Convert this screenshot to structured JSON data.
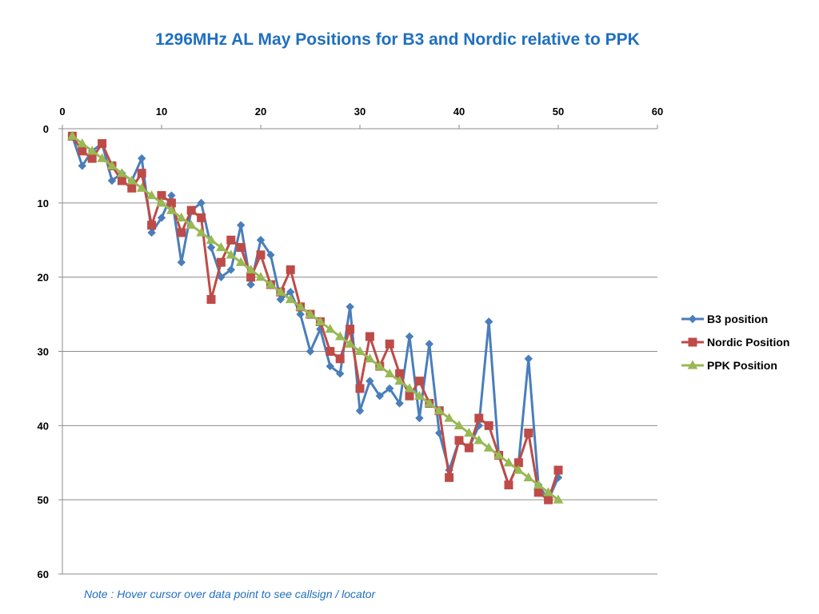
{
  "chart_data": {
    "type": "line",
    "title": "1296MHz AL May Positions for B3 and Nordic relative to PPK",
    "xlabel": "",
    "ylabel": "",
    "xlim": [
      0,
      60
    ],
    "ylim": [
      0,
      60
    ],
    "x_axis_position": "top",
    "y_axis_inverted": true,
    "x_ticks": [
      "0",
      "10",
      "20",
      "30",
      "40",
      "50",
      "60"
    ],
    "y_ticks": [
      "0",
      "10",
      "20",
      "30",
      "40",
      "50",
      "60"
    ],
    "grid": "horizontal",
    "legend_position": "right",
    "x": [
      1,
      2,
      3,
      4,
      5,
      6,
      7,
      8,
      9,
      10,
      11,
      12,
      13,
      14,
      15,
      16,
      17,
      18,
      19,
      20,
      21,
      22,
      23,
      24,
      25,
      26,
      27,
      28,
      29,
      30,
      31,
      32,
      33,
      34,
      35,
      36,
      37,
      38,
      39,
      40,
      41,
      42,
      43,
      44,
      45,
      46,
      47,
      48,
      49,
      50
    ],
    "series": [
      {
        "name": "B3 position",
        "color": "#4a7ebb",
        "marker": "diamond",
        "values": [
          1,
          5,
          3,
          2,
          7,
          6,
          7,
          4,
          14,
          12,
          9,
          18,
          11,
          10,
          16,
          20,
          19,
          13,
          21,
          15,
          17,
          23,
          22,
          25,
          30,
          27,
          32,
          33,
          24,
          38,
          34,
          36,
          35,
          37,
          28,
          39,
          29,
          41,
          46,
          42,
          43,
          40,
          26,
          44,
          48,
          45,
          31,
          48,
          50,
          47
        ]
      },
      {
        "name": "Nordic Position",
        "color": "#be4b48",
        "marker": "square",
        "values": [
          1,
          3,
          4,
          2,
          5,
          7,
          8,
          6,
          13,
          9,
          10,
          14,
          11,
          12,
          23,
          18,
          15,
          16,
          20,
          17,
          21,
          22,
          19,
          24,
          25,
          26,
          30,
          31,
          27,
          35,
          28,
          32,
          29,
          33,
          36,
          34,
          37,
          38,
          47,
          42,
          43,
          39,
          40,
          44,
          48,
          45,
          41,
          49,
          50,
          46
        ]
      },
      {
        "name": "PPK Position",
        "color": "#98b954",
        "marker": "triangle",
        "values": [
          1,
          2,
          3,
          4,
          5,
          6,
          7,
          8,
          9,
          10,
          11,
          12,
          13,
          14,
          15,
          16,
          17,
          18,
          19,
          20,
          21,
          22,
          23,
          24,
          25,
          26,
          27,
          28,
          29,
          30,
          31,
          32,
          33,
          34,
          35,
          36,
          37,
          38,
          39,
          40,
          41,
          42,
          43,
          44,
          45,
          46,
          47,
          48,
          49,
          50
        ]
      }
    ]
  },
  "footnote": "Note : Hover cursor over data point to see callsign / locator"
}
